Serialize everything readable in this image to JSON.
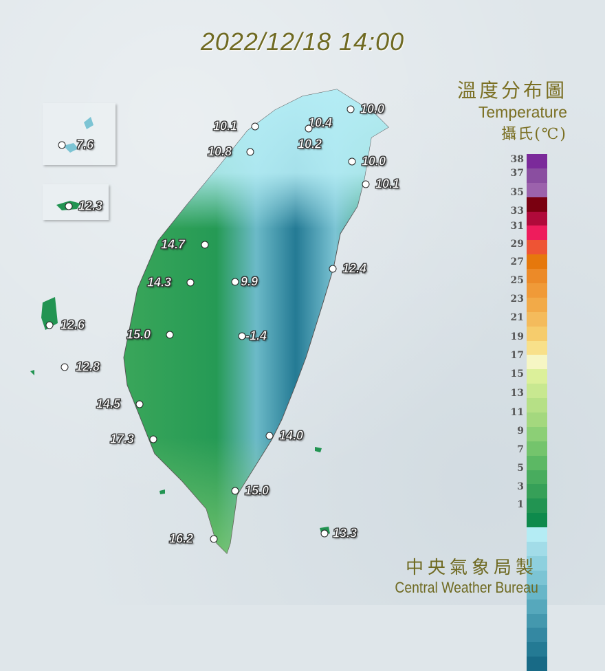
{
  "title": "2022/12/18 14:00",
  "legend": {
    "title_zh": "溫度分布圖",
    "title_en": "Temperature",
    "unit": "攝氏(℃)",
    "ticks": [
      "38",
      "37",
      "35",
      "33",
      "31",
      "29",
      "27",
      "25",
      "23",
      "21",
      "19",
      "17",
      "15",
      "13",
      "11",
      "9",
      "7",
      "5",
      "3",
      "1"
    ],
    "colors": [
      "#7b2a9a",
      "#8a4ea0",
      "#9c62ac",
      "#7a0010",
      "#b00a3a",
      "#ee1c5c",
      "#ee5434",
      "#e6780c",
      "#ec8a28",
      "#f09a38",
      "#f2aa48",
      "#f4bb5c",
      "#f6cc6c",
      "#f8e08a",
      "#f6f6c4",
      "#dcf09a",
      "#c8e890",
      "#b6e086",
      "#a4d87e",
      "#8ccf76",
      "#74c46c",
      "#5cb864",
      "#48ac5e",
      "#36a058",
      "#229452",
      "#0e8a4c",
      "#b4ecf4",
      "#a2dce8",
      "#8ed0de",
      "#7cc4d4",
      "#68b6c8",
      "#56a8bc",
      "#4498ae",
      "#3488a2",
      "#247a94",
      "#186a86"
    ]
  },
  "stations": [
    {
      "value": "10.4"
    },
    {
      "value": "10.0"
    },
    {
      "value": "10.1"
    },
    {
      "value": "10.2"
    },
    {
      "value": "10.8"
    },
    {
      "value": "10.0"
    },
    {
      "value": "10.1"
    },
    {
      "value": "14.7"
    },
    {
      "value": "9.9"
    },
    {
      "value": "14.3"
    },
    {
      "value": "12.4"
    },
    {
      "value": "-1.4"
    },
    {
      "value": "15.0"
    },
    {
      "value": "14.5"
    },
    {
      "value": "17.3"
    },
    {
      "value": "14.0"
    },
    {
      "value": "15.0"
    },
    {
      "value": "16.2"
    },
    {
      "value": "13.3"
    },
    {
      "value": "7.6"
    },
    {
      "value": "12.3"
    },
    {
      "value": "12.6"
    },
    {
      "value": "12.8"
    }
  ],
  "credit": {
    "zh": "中央氣象局製",
    "en": "Central Weather Bureau"
  }
}
